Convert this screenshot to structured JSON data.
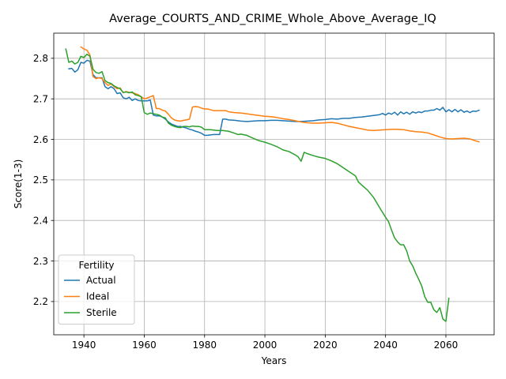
{
  "chart_data": {
    "type": "line",
    "title": "Average_COURTS_AND_CRIME_Whole_Above_Average_IQ",
    "xlabel": "Years",
    "ylabel": "Score(1-3)",
    "xlim": [
      1930,
      2076
    ],
    "ylim": [
      2.118,
      2.862
    ],
    "xticks": [
      1940,
      1960,
      1980,
      2000,
      2020,
      2040,
      2060
    ],
    "yticks": [
      2.2,
      2.3,
      2.4,
      2.5,
      2.6,
      2.7,
      2.8
    ],
    "grid": true,
    "legend": {
      "title": "Fertility",
      "placement": "lower-left"
    },
    "series": [
      {
        "name": "Actual",
        "color": "#1f77b4",
        "points": [
          [
            1935,
            2.774
          ],
          [
            1936,
            2.775
          ],
          [
            1937,
            2.766
          ],
          [
            1938,
            2.772
          ],
          [
            1939,
            2.79
          ],
          [
            1940,
            2.788
          ],
          [
            1941,
            2.795
          ],
          [
            1942,
            2.793
          ],
          [
            1943,
            2.76
          ],
          [
            1944,
            2.752
          ],
          [
            1945,
            2.752
          ],
          [
            1946,
            2.752
          ],
          [
            1947,
            2.73
          ],
          [
            1948,
            2.725
          ],
          [
            1949,
            2.73
          ],
          [
            1950,
            2.725
          ],
          [
            1951,
            2.713
          ],
          [
            1952,
            2.715
          ],
          [
            1953,
            2.703
          ],
          [
            1954,
            2.7
          ],
          [
            1955,
            2.704
          ],
          [
            1956,
            2.696
          ],
          [
            1957,
            2.7
          ],
          [
            1958,
            2.696
          ],
          [
            1959,
            2.695
          ],
          [
            1960,
            2.695
          ],
          [
            1961,
            2.695
          ],
          [
            1962,
            2.697
          ],
          [
            1963,
            2.66
          ],
          [
            1964,
            2.658
          ],
          [
            1965,
            2.658
          ],
          [
            1966,
            2.655
          ],
          [
            1967,
            2.65
          ],
          [
            1968,
            2.643
          ],
          [
            1969,
            2.638
          ],
          [
            1970,
            2.635
          ],
          [
            1971,
            2.632
          ],
          [
            1972,
            2.632
          ],
          [
            1973,
            2.63
          ],
          [
            1974,
            2.628
          ],
          [
            1975,
            2.625
          ],
          [
            1976,
            2.623
          ],
          [
            1977,
            2.62
          ],
          [
            1978,
            2.618
          ],
          [
            1979,
            2.615
          ],
          [
            1980,
            2.61
          ],
          [
            1981,
            2.61
          ],
          [
            1982,
            2.611
          ],
          [
            1983,
            2.612
          ],
          [
            1984,
            2.612
          ],
          [
            1985,
            2.612
          ],
          [
            1986,
            2.65
          ],
          [
            1987,
            2.65
          ],
          [
            1988,
            2.648
          ],
          [
            1990,
            2.647
          ],
          [
            1992,
            2.645
          ],
          [
            1994,
            2.644
          ],
          [
            1996,
            2.645
          ],
          [
            1998,
            2.646
          ],
          [
            2000,
            2.646
          ],
          [
            2002,
            2.647
          ],
          [
            2004,
            2.647
          ],
          [
            2006,
            2.646
          ],
          [
            2008,
            2.645
          ],
          [
            2010,
            2.644
          ],
          [
            2012,
            2.644
          ],
          [
            2014,
            2.645
          ],
          [
            2016,
            2.646
          ],
          [
            2018,
            2.648
          ],
          [
            2020,
            2.649
          ],
          [
            2022,
            2.651
          ],
          [
            2024,
            2.65
          ],
          [
            2026,
            2.652
          ],
          [
            2028,
            2.652
          ],
          [
            2030,
            2.654
          ],
          [
            2032,
            2.655
          ],
          [
            2034,
            2.657
          ],
          [
            2036,
            2.659
          ],
          [
            2038,
            2.661
          ],
          [
            2039,
            2.664
          ],
          [
            2040,
            2.66
          ],
          [
            2041,
            2.665
          ],
          [
            2042,
            2.662
          ],
          [
            2043,
            2.667
          ],
          [
            2044,
            2.66
          ],
          [
            2045,
            2.668
          ],
          [
            2046,
            2.663
          ],
          [
            2047,
            2.667
          ],
          [
            2048,
            2.662
          ],
          [
            2049,
            2.668
          ],
          [
            2050,
            2.665
          ],
          [
            2051,
            2.668
          ],
          [
            2052,
            2.666
          ],
          [
            2053,
            2.67
          ],
          [
            2054,
            2.67
          ],
          [
            2055,
            2.672
          ],
          [
            2056,
            2.672
          ],
          [
            2057,
            2.676
          ],
          [
            2058,
            2.672
          ],
          [
            2059,
            2.679
          ],
          [
            2060,
            2.668
          ],
          [
            2061,
            2.673
          ],
          [
            2062,
            2.668
          ],
          [
            2063,
            2.674
          ],
          [
            2064,
            2.668
          ],
          [
            2065,
            2.673
          ],
          [
            2066,
            2.667
          ],
          [
            2067,
            2.67
          ],
          [
            2068,
            2.666
          ],
          [
            2069,
            2.67
          ],
          [
            2070,
            2.669
          ],
          [
            2071,
            2.672
          ]
        ]
      },
      {
        "name": "Ideal",
        "color": "#ff7f0e",
        "points": [
          [
            1939,
            2.828
          ],
          [
            1940,
            2.823
          ],
          [
            1941,
            2.82
          ],
          [
            1942,
            2.808
          ],
          [
            1943,
            2.755
          ],
          [
            1944,
            2.75
          ],
          [
            1945,
            2.752
          ],
          [
            1946,
            2.75
          ],
          [
            1947,
            2.74
          ],
          [
            1948,
            2.733
          ],
          [
            1949,
            2.737
          ],
          [
            1950,
            2.73
          ],
          [
            1951,
            2.725
          ],
          [
            1952,
            2.727
          ],
          [
            1953,
            2.715
          ],
          [
            1954,
            2.718
          ],
          [
            1955,
            2.716
          ],
          [
            1956,
            2.715
          ],
          [
            1957,
            2.713
          ],
          [
            1958,
            2.71
          ],
          [
            1959,
            2.705
          ],
          [
            1960,
            2.7
          ],
          [
            1961,
            2.702
          ],
          [
            1962,
            2.705
          ],
          [
            1963,
            2.708
          ],
          [
            1964,
            2.676
          ],
          [
            1965,
            2.676
          ],
          [
            1966,
            2.672
          ],
          [
            1967,
            2.67
          ],
          [
            1968,
            2.662
          ],
          [
            1969,
            2.653
          ],
          [
            1970,
            2.648
          ],
          [
            1971,
            2.646
          ],
          [
            1972,
            2.645
          ],
          [
            1973,
            2.647
          ],
          [
            1974,
            2.648
          ],
          [
            1975,
            2.65
          ],
          [
            1976,
            2.68
          ],
          [
            1977,
            2.681
          ],
          [
            1978,
            2.68
          ],
          [
            1979,
            2.677
          ],
          [
            1980,
            2.675
          ],
          [
            1981,
            2.675
          ],
          [
            1982,
            2.673
          ],
          [
            1983,
            2.671
          ],
          [
            1984,
            2.671
          ],
          [
            1985,
            2.671
          ],
          [
            1986,
            2.671
          ],
          [
            1987,
            2.671
          ],
          [
            1988,
            2.668
          ],
          [
            1990,
            2.666
          ],
          [
            1992,
            2.665
          ],
          [
            1994,
            2.663
          ],
          [
            1996,
            2.661
          ],
          [
            1998,
            2.659
          ],
          [
            2000,
            2.657
          ],
          [
            2002,
            2.656
          ],
          [
            2004,
            2.654
          ],
          [
            2006,
            2.651
          ],
          [
            2008,
            2.649
          ],
          [
            2010,
            2.646
          ],
          [
            2012,
            2.643
          ],
          [
            2014,
            2.641
          ],
          [
            2016,
            2.64
          ],
          [
            2018,
            2.64
          ],
          [
            2020,
            2.641
          ],
          [
            2022,
            2.642
          ],
          [
            2024,
            2.64
          ],
          [
            2026,
            2.636
          ],
          [
            2028,
            2.632
          ],
          [
            2030,
            2.629
          ],
          [
            2032,
            2.626
          ],
          [
            2034,
            2.623
          ],
          [
            2036,
            2.622
          ],
          [
            2038,
            2.623
          ],
          [
            2040,
            2.624
          ],
          [
            2042,
            2.625
          ],
          [
            2044,
            2.625
          ],
          [
            2046,
            2.624
          ],
          [
            2048,
            2.621
          ],
          [
            2050,
            2.619
          ],
          [
            2052,
            2.618
          ],
          [
            2054,
            2.616
          ],
          [
            2056,
            2.611
          ],
          [
            2058,
            2.606
          ],
          [
            2060,
            2.602
          ],
          [
            2062,
            2.601
          ],
          [
            2064,
            2.602
          ],
          [
            2066,
            2.603
          ],
          [
            2068,
            2.601
          ],
          [
            2070,
            2.596
          ],
          [
            2071,
            2.594
          ]
        ]
      },
      {
        "name": "Sterile",
        "color": "#2ca02c",
        "points": [
          [
            1934,
            2.823
          ],
          [
            1935,
            2.79
          ],
          [
            1936,
            2.793
          ],
          [
            1937,
            2.786
          ],
          [
            1938,
            2.79
          ],
          [
            1939,
            2.805
          ],
          [
            1940,
            2.802
          ],
          [
            1941,
            2.81
          ],
          [
            1942,
            2.805
          ],
          [
            1943,
            2.773
          ],
          [
            1944,
            2.765
          ],
          [
            1945,
            2.763
          ],
          [
            1946,
            2.767
          ],
          [
            1947,
            2.745
          ],
          [
            1948,
            2.74
          ],
          [
            1949,
            2.738
          ],
          [
            1950,
            2.732
          ],
          [
            1951,
            2.728
          ],
          [
            1952,
            2.725
          ],
          [
            1953,
            2.716
          ],
          [
            1954,
            2.717
          ],
          [
            1955,
            2.715
          ],
          [
            1956,
            2.717
          ],
          [
            1957,
            2.71
          ],
          [
            1958,
            2.708
          ],
          [
            1959,
            2.705
          ],
          [
            1960,
            2.666
          ],
          [
            1961,
            2.662
          ],
          [
            1962,
            2.665
          ],
          [
            1963,
            2.663
          ],
          [
            1964,
            2.662
          ],
          [
            1965,
            2.66
          ],
          [
            1966,
            2.655
          ],
          [
            1967,
            2.653
          ],
          [
            1968,
            2.64
          ],
          [
            1969,
            2.635
          ],
          [
            1970,
            2.632
          ],
          [
            1971,
            2.63
          ],
          [
            1972,
            2.629
          ],
          [
            1973,
            2.632
          ],
          [
            1974,
            2.632
          ],
          [
            1975,
            2.631
          ],
          [
            1976,
            2.633
          ],
          [
            1977,
            2.632
          ],
          [
            1978,
            2.632
          ],
          [
            1979,
            2.63
          ],
          [
            1980,
            2.624
          ],
          [
            1982,
            2.624
          ],
          [
            1984,
            2.622
          ],
          [
            1986,
            2.622
          ],
          [
            1988,
            2.62
          ],
          [
            1990,
            2.615
          ],
          [
            1991,
            2.612
          ],
          [
            1992,
            2.613
          ],
          [
            1994,
            2.61
          ],
          [
            1996,
            2.603
          ],
          [
            1998,
            2.597
          ],
          [
            2000,
            2.593
          ],
          [
            2002,
            2.588
          ],
          [
            2004,
            2.582
          ],
          [
            2006,
            2.574
          ],
          [
            2008,
            2.57
          ],
          [
            2010,
            2.562
          ],
          [
            2011,
            2.557
          ],
          [
            2012,
            2.546
          ],
          [
            2013,
            2.568
          ],
          [
            2014,
            2.565
          ],
          [
            2016,
            2.56
          ],
          [
            2018,
            2.556
          ],
          [
            2020,
            2.553
          ],
          [
            2022,
            2.547
          ],
          [
            2024,
            2.54
          ],
          [
            2026,
            2.53
          ],
          [
            2028,
            2.52
          ],
          [
            2030,
            2.51
          ],
          [
            2031,
            2.495
          ],
          [
            2032,
            2.488
          ],
          [
            2034,
            2.475
          ],
          [
            2036,
            2.457
          ],
          [
            2038,
            2.432
          ],
          [
            2040,
            2.408
          ],
          [
            2041,
            2.397
          ],
          [
            2042,
            2.376
          ],
          [
            2043,
            2.357
          ],
          [
            2044,
            2.347
          ],
          [
            2045,
            2.34
          ],
          [
            2046,
            2.34
          ],
          [
            2047,
            2.325
          ],
          [
            2048,
            2.3
          ],
          [
            2049,
            2.288
          ],
          [
            2050,
            2.27
          ],
          [
            2051,
            2.255
          ],
          [
            2052,
            2.238
          ],
          [
            2053,
            2.212
          ],
          [
            2054,
            2.198
          ],
          [
            2055,
            2.198
          ],
          [
            2056,
            2.18
          ],
          [
            2057,
            2.173
          ],
          [
            2058,
            2.185
          ],
          [
            2059,
            2.157
          ],
          [
            2060,
            2.151
          ],
          [
            2061,
            2.208
          ]
        ]
      }
    ]
  }
}
